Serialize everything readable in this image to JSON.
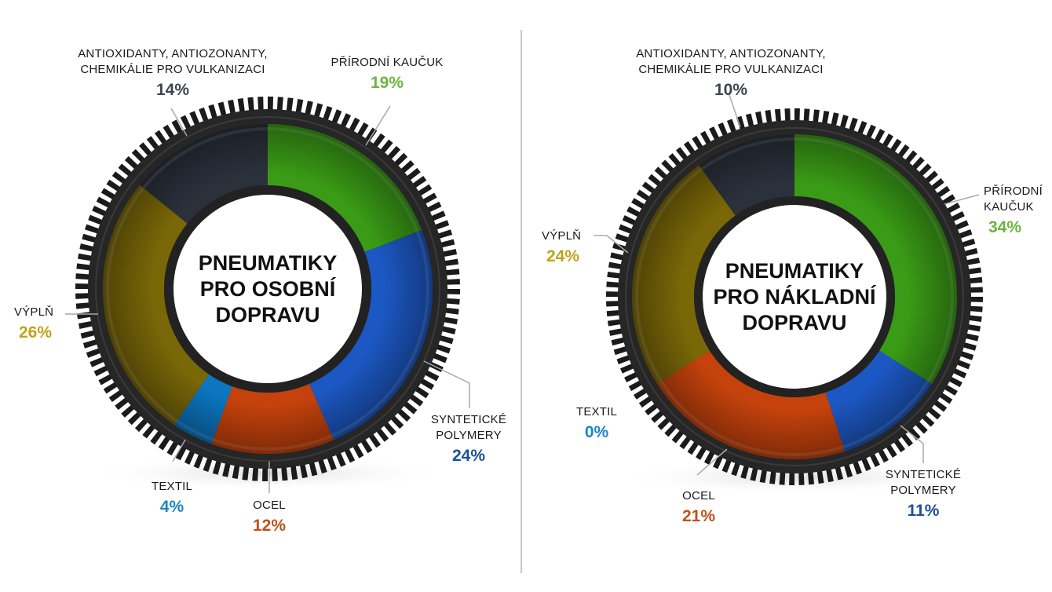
{
  "chart_data": [
    {
      "type": "pie",
      "title": "PNEUMATIKY PRO OSOBNÍ DOPRAVU",
      "title_lines": [
        "PNEUMATIKY",
        "PRO OSOBNÍ",
        "DOPRAVU"
      ],
      "slices": [
        {
          "label_lines": [
            "PŘÍRODNÍ KAUČUK"
          ],
          "value": 19,
          "text": "19%",
          "color": "#3a9b16",
          "label_color": "#6cb43f"
        },
        {
          "label_lines": [
            "SYNTETICKÉ",
            "POLYMERY"
          ],
          "value": 24,
          "text": "24%",
          "color": "#1c58c4",
          "label_color": "#1d4f95"
        },
        {
          "label_lines": [
            "OCEL"
          ],
          "value": 12,
          "text": "12%",
          "color": "#c5420c",
          "label_color": "#c0501a"
        },
        {
          "label_lines": [
            "TEXTIL"
          ],
          "value": 4,
          "text": "4%",
          "color": "#0b77c2",
          "label_color": "#1a86c4"
        },
        {
          "label_lines": [
            "VÝPLŇ"
          ],
          "value": 26,
          "text": "26%",
          "color": "#7a6708",
          "label_color": "#c2a21b"
        },
        {
          "label_lines": [
            "ANTIOXIDANTY, ANTIOZONANTY,",
            "CHEMIKÁLIE PRO VULKANIZACI"
          ],
          "value": 14,
          "text": "14%",
          "color": "#2a313b",
          "label_color": "#3d4550"
        }
      ]
    },
    {
      "type": "pie",
      "title": "PNEUMATIKY PRO NÁKLADNÍ DOPRAVU",
      "title_lines": [
        "PNEUMATIKY",
        "PRO NÁKLADNÍ",
        "DOPRAVU"
      ],
      "slices": [
        {
          "label_lines": [
            "PŘÍRODNÍ",
            "KAUČUK"
          ],
          "value": 34,
          "text": "34%",
          "color": "#3a9b16",
          "label_color": "#6cb43f"
        },
        {
          "label_lines": [
            "SYNTETICKÉ",
            "POLYMERY"
          ],
          "value": 11,
          "text": "11%",
          "color": "#1c58c4",
          "label_color": "#1d4f95"
        },
        {
          "label_lines": [
            "OCEL"
          ],
          "value": 21,
          "text": "21%",
          "color": "#c5420c",
          "label_color": "#c0501a"
        },
        {
          "label_lines": [
            "TEXTIL"
          ],
          "value": 0,
          "text": "0%",
          "color": "#0b77c2",
          "label_color": "#1a86c4"
        },
        {
          "label_lines": [
            "VÝPLŇ"
          ],
          "value": 24,
          "text": "24%",
          "color": "#7a6708",
          "label_color": "#c2a21b"
        },
        {
          "label_lines": [
            "ANTIOXIDANTY, ANTIOZONANTY,",
            "CHEMIKÁLIE PRO VULKANIZACI"
          ],
          "value": 10,
          "text": "10%",
          "color": "#2a313b",
          "label_color": "#3d4550"
        }
      ]
    }
  ]
}
